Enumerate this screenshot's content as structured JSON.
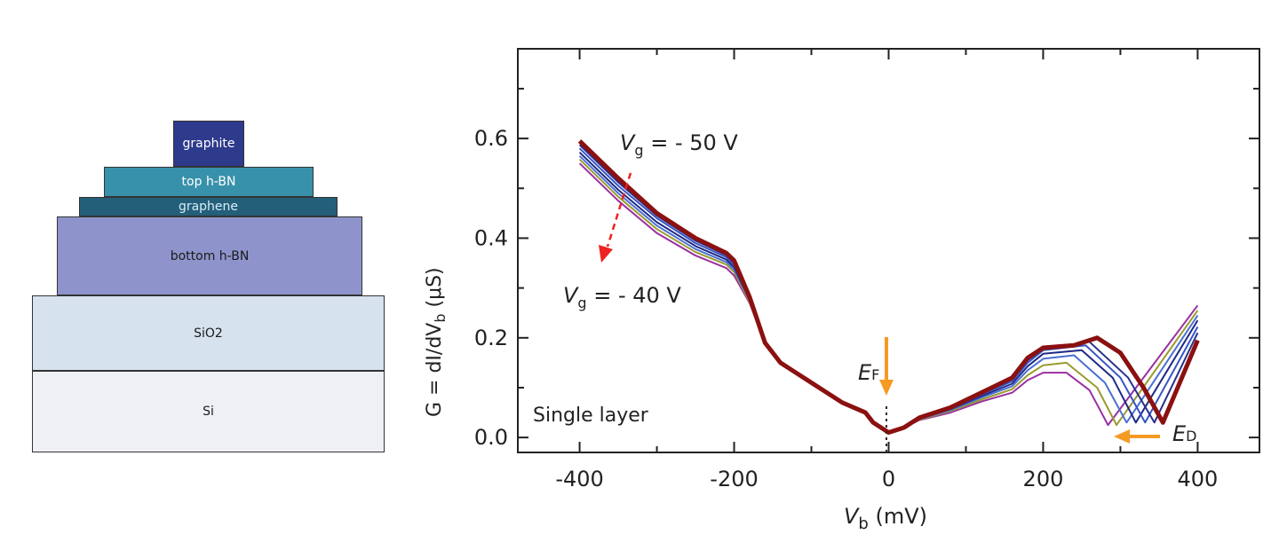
{
  "diagram": {
    "layers": [
      {
        "label": "graphite",
        "color": "#2e3a8c",
        "text_color": "#ffffff"
      },
      {
        "label": "top h-BN",
        "color": "#3891ab",
        "text_color": "#ffffff"
      },
      {
        "label": "graphene",
        "color": "#245f7a",
        "text_color": "#d8eef8"
      },
      {
        "label": "bottom h-BN",
        "color": "#8e94cb",
        "text_color": "#1a1a1a"
      },
      {
        "label": "SiO2",
        "color": "#d6e2ee",
        "text_color": "#1a1a1a"
      },
      {
        "label": "Si",
        "color": "#eef0f6",
        "text_color": "#1a1a1a"
      }
    ]
  },
  "chart_data": {
    "type": "line",
    "xlabel_main": "V",
    "xlabel_sub": "b",
    "xlabel_unit": " (mV)",
    "ylabel_pre": "G = dI/dV",
    "ylabel_sub": "b",
    "ylabel_unit": " (μS)",
    "xlim": [
      -480,
      480
    ],
    "ylim": [
      -0.03,
      0.78
    ],
    "xticks": [
      -400,
      -200,
      0,
      200,
      400
    ],
    "xtick_labels": [
      "-400",
      "-200",
      "0",
      "200",
      "400"
    ],
    "yticks": [
      0,
      0.2,
      0.4,
      0.6
    ],
    "ytick_labels": [
      "0.0",
      "0.2",
      "0.4",
      "0.6"
    ],
    "minor_xtick_step": 100,
    "minor_ytick_step": 0.1,
    "grid": false,
    "series": [
      {
        "color": "#9b2fa3",
        "x": [
          -400,
          -350,
          -300,
          -250,
          -210,
          -200,
          -180,
          -160,
          -140,
          -100,
          -60,
          -30,
          -20,
          0,
          20,
          40,
          80,
          120,
          160,
          180,
          200,
          230,
          260,
          284,
          400
        ],
        "y": [
          0.55,
          0.475,
          0.41,
          0.365,
          0.34,
          0.325,
          0.27,
          0.19,
          0.15,
          0.11,
          0.07,
          0.05,
          0.03,
          0.01,
          0.02,
          0.035,
          0.05,
          0.072,
          0.09,
          0.115,
          0.13,
          0.13,
          0.095,
          0.025,
          0.265
        ]
      },
      {
        "color": "#9a9a2e",
        "x": [
          -400,
          -350,
          -300,
          -250,
          -210,
          -200,
          -180,
          -160,
          -140,
          -100,
          -60,
          -30,
          -20,
          0,
          20,
          40,
          80,
          120,
          160,
          180,
          200,
          230,
          270,
          295,
          400
        ],
        "y": [
          0.558,
          0.483,
          0.418,
          0.372,
          0.347,
          0.332,
          0.272,
          0.19,
          0.15,
          0.11,
          0.07,
          0.05,
          0.03,
          0.01,
          0.02,
          0.036,
          0.053,
          0.076,
          0.097,
          0.125,
          0.145,
          0.15,
          0.1,
          0.025,
          0.255
        ]
      },
      {
        "color": "#4a6fd4",
        "x": [
          -400,
          -350,
          -300,
          -250,
          -210,
          -200,
          -180,
          -160,
          -140,
          -100,
          -60,
          -30,
          -20,
          0,
          20,
          40,
          80,
          120,
          160,
          180,
          200,
          240,
          280,
          308,
          400
        ],
        "y": [
          0.565,
          0.49,
          0.425,
          0.378,
          0.352,
          0.337,
          0.275,
          0.19,
          0.15,
          0.11,
          0.07,
          0.05,
          0.03,
          0.01,
          0.02,
          0.037,
          0.055,
          0.08,
          0.103,
          0.135,
          0.158,
          0.165,
          0.11,
          0.03,
          0.245
        ]
      },
      {
        "color": "#1f2a85",
        "x": [
          -400,
          -350,
          -300,
          -250,
          -210,
          -200,
          -180,
          -160,
          -140,
          -100,
          -60,
          -30,
          -20,
          0,
          20,
          40,
          80,
          120,
          160,
          180,
          200,
          250,
          290,
          320,
          400
        ],
        "y": [
          0.572,
          0.497,
          0.432,
          0.384,
          0.357,
          0.342,
          0.277,
          0.19,
          0.15,
          0.11,
          0.07,
          0.05,
          0.03,
          0.01,
          0.02,
          0.038,
          0.057,
          0.083,
          0.108,
          0.143,
          0.168,
          0.175,
          0.12,
          0.03,
          0.235
        ]
      },
      {
        "color": "#3455c4",
        "x": [
          -400,
          -350,
          -300,
          -250,
          -210,
          -200,
          -180,
          -160,
          -140,
          -100,
          -60,
          -30,
          -20,
          0,
          20,
          40,
          80,
          120,
          160,
          180,
          200,
          255,
          300,
          332,
          400
        ],
        "y": [
          0.58,
          0.505,
          0.44,
          0.39,
          0.362,
          0.347,
          0.279,
          0.19,
          0.15,
          0.11,
          0.07,
          0.05,
          0.03,
          0.01,
          0.02,
          0.039,
          0.058,
          0.086,
          0.113,
          0.15,
          0.175,
          0.185,
          0.12,
          0.03,
          0.222
        ]
      },
      {
        "color": "#28308c",
        "x": [
          -400,
          -350,
          -300,
          -250,
          -210,
          -200,
          -180,
          -160,
          -140,
          -100,
          -60,
          -30,
          -20,
          0,
          20,
          40,
          80,
          120,
          160,
          180,
          200,
          260,
          310,
          344,
          400
        ],
        "y": [
          0.587,
          0.512,
          0.445,
          0.395,
          0.366,
          0.351,
          0.28,
          0.19,
          0.15,
          0.11,
          0.07,
          0.05,
          0.03,
          0.01,
          0.02,
          0.04,
          0.06,
          0.088,
          0.117,
          0.155,
          0.178,
          0.192,
          0.12,
          0.03,
          0.21
        ]
      },
      {
        "color": "#8b1010",
        "x": [
          -400,
          -350,
          -300,
          -250,
          -210,
          -200,
          -180,
          -160,
          -140,
          -100,
          -60,
          -30,
          -20,
          0,
          20,
          40,
          80,
          120,
          160,
          180,
          200,
          240,
          270,
          300,
          330,
          355,
          400
        ],
        "y": [
          0.595,
          0.52,
          0.45,
          0.4,
          0.37,
          0.355,
          0.282,
          0.19,
          0.15,
          0.11,
          0.07,
          0.05,
          0.03,
          0.01,
          0.02,
          0.04,
          0.06,
          0.09,
          0.12,
          0.16,
          0.18,
          0.185,
          0.2,
          0.17,
          0.1,
          0.03,
          0.195
        ]
      }
    ],
    "annotations": {
      "vg_top": {
        "v": "V",
        "sub": "g",
        "rest": " = - 50 V"
      },
      "vg_bottom": {
        "v": "V",
        "sub": "g",
        "rest": " = - 40 V"
      },
      "ef": {
        "e": "E",
        "sub": "F"
      },
      "ed": {
        "e": "E",
        "sub": "D"
      },
      "single_layer": "Single layer",
      "trend_arrow_color": "#ee2222",
      "energy_arrow_color": "#f59a23"
    }
  }
}
